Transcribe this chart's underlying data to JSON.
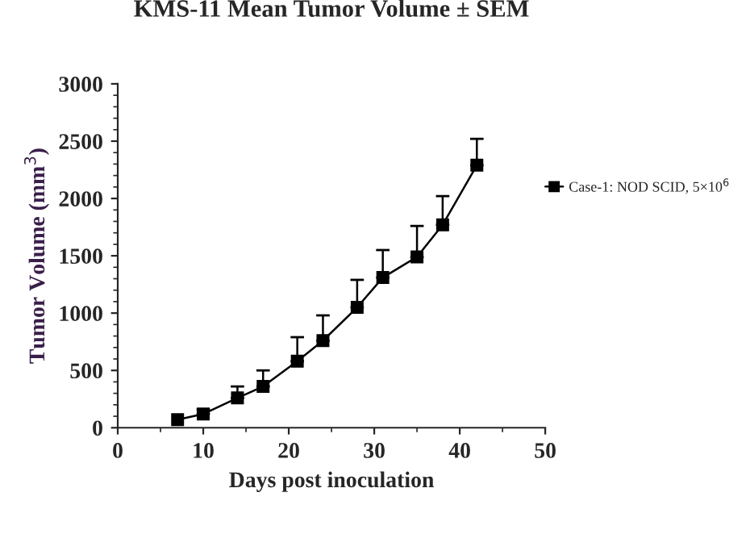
{
  "chart_data": {
    "type": "line",
    "title": "KMS-11 Mean Tumor Volume ± SEM",
    "xlabel": "Days post inoculation",
    "ylabel": "Tumor Volume (mm$^{3}$)",
    "x": [
      7,
      10,
      14,
      17,
      21,
      24,
      28,
      31,
      35,
      38,
      42
    ],
    "series": [
      {
        "name": "Case-1: NOD SCID, 5×10$^{6}$",
        "color": "#000000",
        "values": [
          70,
          120,
          260,
          360,
          580,
          760,
          1050,
          1310,
          1490,
          1770,
          2290
        ],
        "errors": [
          null,
          [
            120,
            160
          ],
          [
            260,
            360
          ],
          [
            360,
            500
          ],
          [
            580,
            790
          ],
          [
            760,
            980
          ],
          [
            1050,
            1290
          ],
          [
            1310,
            1550
          ],
          [
            1490,
            1760
          ],
          [
            1770,
            2020
          ],
          [
            2290,
            2520
          ]
        ]
      }
    ],
    "xlim": [
      0,
      50
    ],
    "xticks": [
      0,
      10,
      20,
      30,
      40,
      50
    ],
    "ylim": [
      0,
      3000
    ],
    "yticks": [
      0,
      500,
      1000,
      1500,
      2000,
      2500,
      3000
    ],
    "marker": "square",
    "line_style": "solid",
    "legend": "right",
    "grid": false
  }
}
